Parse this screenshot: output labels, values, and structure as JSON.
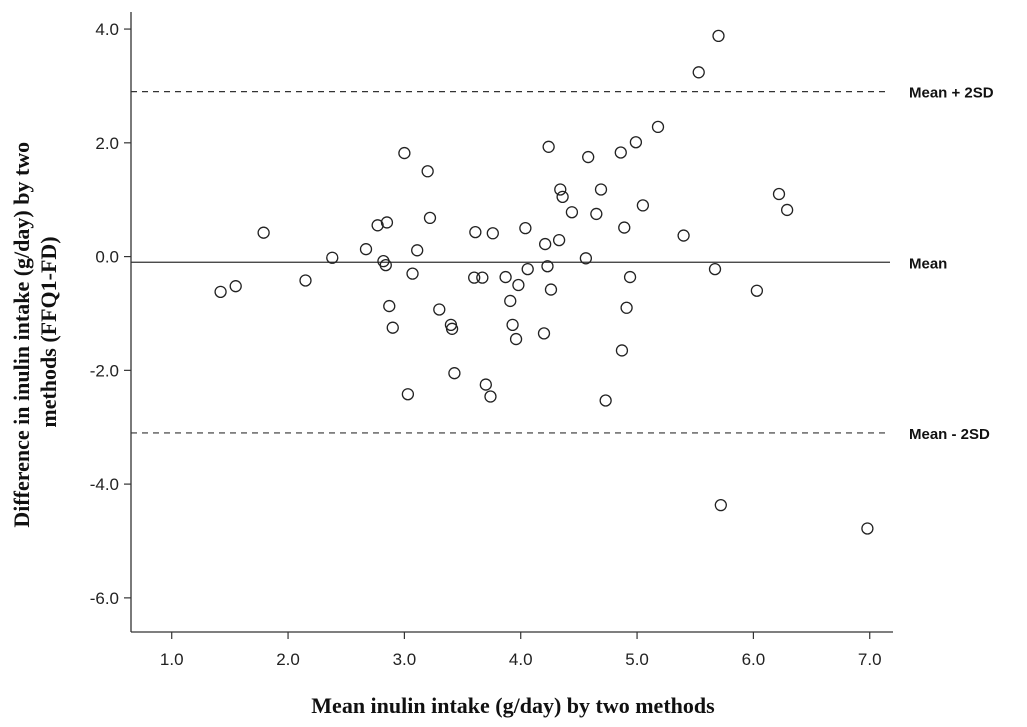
{
  "chart_data": {
    "type": "scatter",
    "title": "",
    "xlabel": "Mean inulin intake (g/day) by two methods",
    "ylabel_lines": [
      "Difference in inulin intake (g/day) by two",
      "methods (FFQ1-FD)"
    ],
    "xlim": [
      0.65,
      7.2
    ],
    "ylim": [
      -6.6,
      4.3
    ],
    "x_ticks": [
      1.0,
      2.0,
      3.0,
      4.0,
      5.0,
      6.0,
      7.0
    ],
    "x_tick_labels": [
      "1.0",
      "2.0",
      "3.0",
      "4.0",
      "5.0",
      "6.0",
      "7.0"
    ],
    "y_ticks": [
      4.0,
      2.0,
      0.0,
      -2.0,
      -4.0,
      -6.0
    ],
    "y_tick_labels": [
      "4.0",
      "2.0",
      "0.0",
      "-2.0",
      "-4.0",
      "-6.0"
    ],
    "grid": false,
    "marker": "open-circle",
    "reference_lines": [
      {
        "label": "Mean + 2SD",
        "y": 2.9,
        "style": "dashed"
      },
      {
        "label": "Mean",
        "y": -0.1,
        "style": "solid"
      },
      {
        "label": "Mean - 2SD",
        "y": -3.1,
        "style": "dashed"
      }
    ],
    "points": [
      [
        1.42,
        -0.62
      ],
      [
        1.55,
        -0.52
      ],
      [
        1.79,
        0.42
      ],
      [
        2.15,
        -0.42
      ],
      [
        2.38,
        -0.02
      ],
      [
        2.67,
        0.13
      ],
      [
        2.77,
        0.55
      ],
      [
        2.82,
        -0.08
      ],
      [
        2.84,
        -0.15
      ],
      [
        2.85,
        0.6
      ],
      [
        2.87,
        -0.87
      ],
      [
        2.9,
        -1.25
      ],
      [
        3.0,
        1.82
      ],
      [
        3.03,
        -2.42
      ],
      [
        3.07,
        -0.3
      ],
      [
        3.11,
        0.11
      ],
      [
        3.2,
        1.5
      ],
      [
        3.22,
        0.68
      ],
      [
        3.3,
        -0.93
      ],
      [
        3.4,
        -1.2
      ],
      [
        3.41,
        -1.27
      ],
      [
        3.43,
        -2.05
      ],
      [
        3.6,
        -0.37
      ],
      [
        3.61,
        0.43
      ],
      [
        3.67,
        -0.37
      ],
      [
        3.7,
        -2.25
      ],
      [
        3.74,
        -2.46
      ],
      [
        3.76,
        0.41
      ],
      [
        3.87,
        -0.36
      ],
      [
        3.91,
        -0.78
      ],
      [
        3.93,
        -1.2
      ],
      [
        3.96,
        -1.45
      ],
      [
        3.98,
        -0.5
      ],
      [
        4.04,
        0.5
      ],
      [
        4.06,
        -0.22
      ],
      [
        4.2,
        -1.35
      ],
      [
        4.21,
        0.22
      ],
      [
        4.23,
        -0.17
      ],
      [
        4.24,
        1.93
      ],
      [
        4.26,
        -0.58
      ],
      [
        4.33,
        0.29
      ],
      [
        4.34,
        1.18
      ],
      [
        4.36,
        1.05
      ],
      [
        4.44,
        0.78
      ],
      [
        4.56,
        -0.03
      ],
      [
        4.58,
        1.75
      ],
      [
        4.65,
        0.75
      ],
      [
        4.69,
        1.18
      ],
      [
        4.73,
        -2.53
      ],
      [
        4.86,
        1.83
      ],
      [
        4.87,
        -1.65
      ],
      [
        4.89,
        0.51
      ],
      [
        4.91,
        -0.9
      ],
      [
        4.94,
        -0.36
      ],
      [
        4.99,
        2.01
      ],
      [
        5.05,
        0.9
      ],
      [
        5.18,
        2.28
      ],
      [
        5.4,
        0.37
      ],
      [
        5.53,
        3.24
      ],
      [
        5.67,
        -0.22
      ],
      [
        5.7,
        3.88
      ],
      [
        5.72,
        -4.37
      ],
      [
        6.03,
        -0.6
      ],
      [
        6.22,
        1.1
      ],
      [
        6.29,
        0.82
      ],
      [
        6.98,
        -4.78
      ]
    ]
  }
}
